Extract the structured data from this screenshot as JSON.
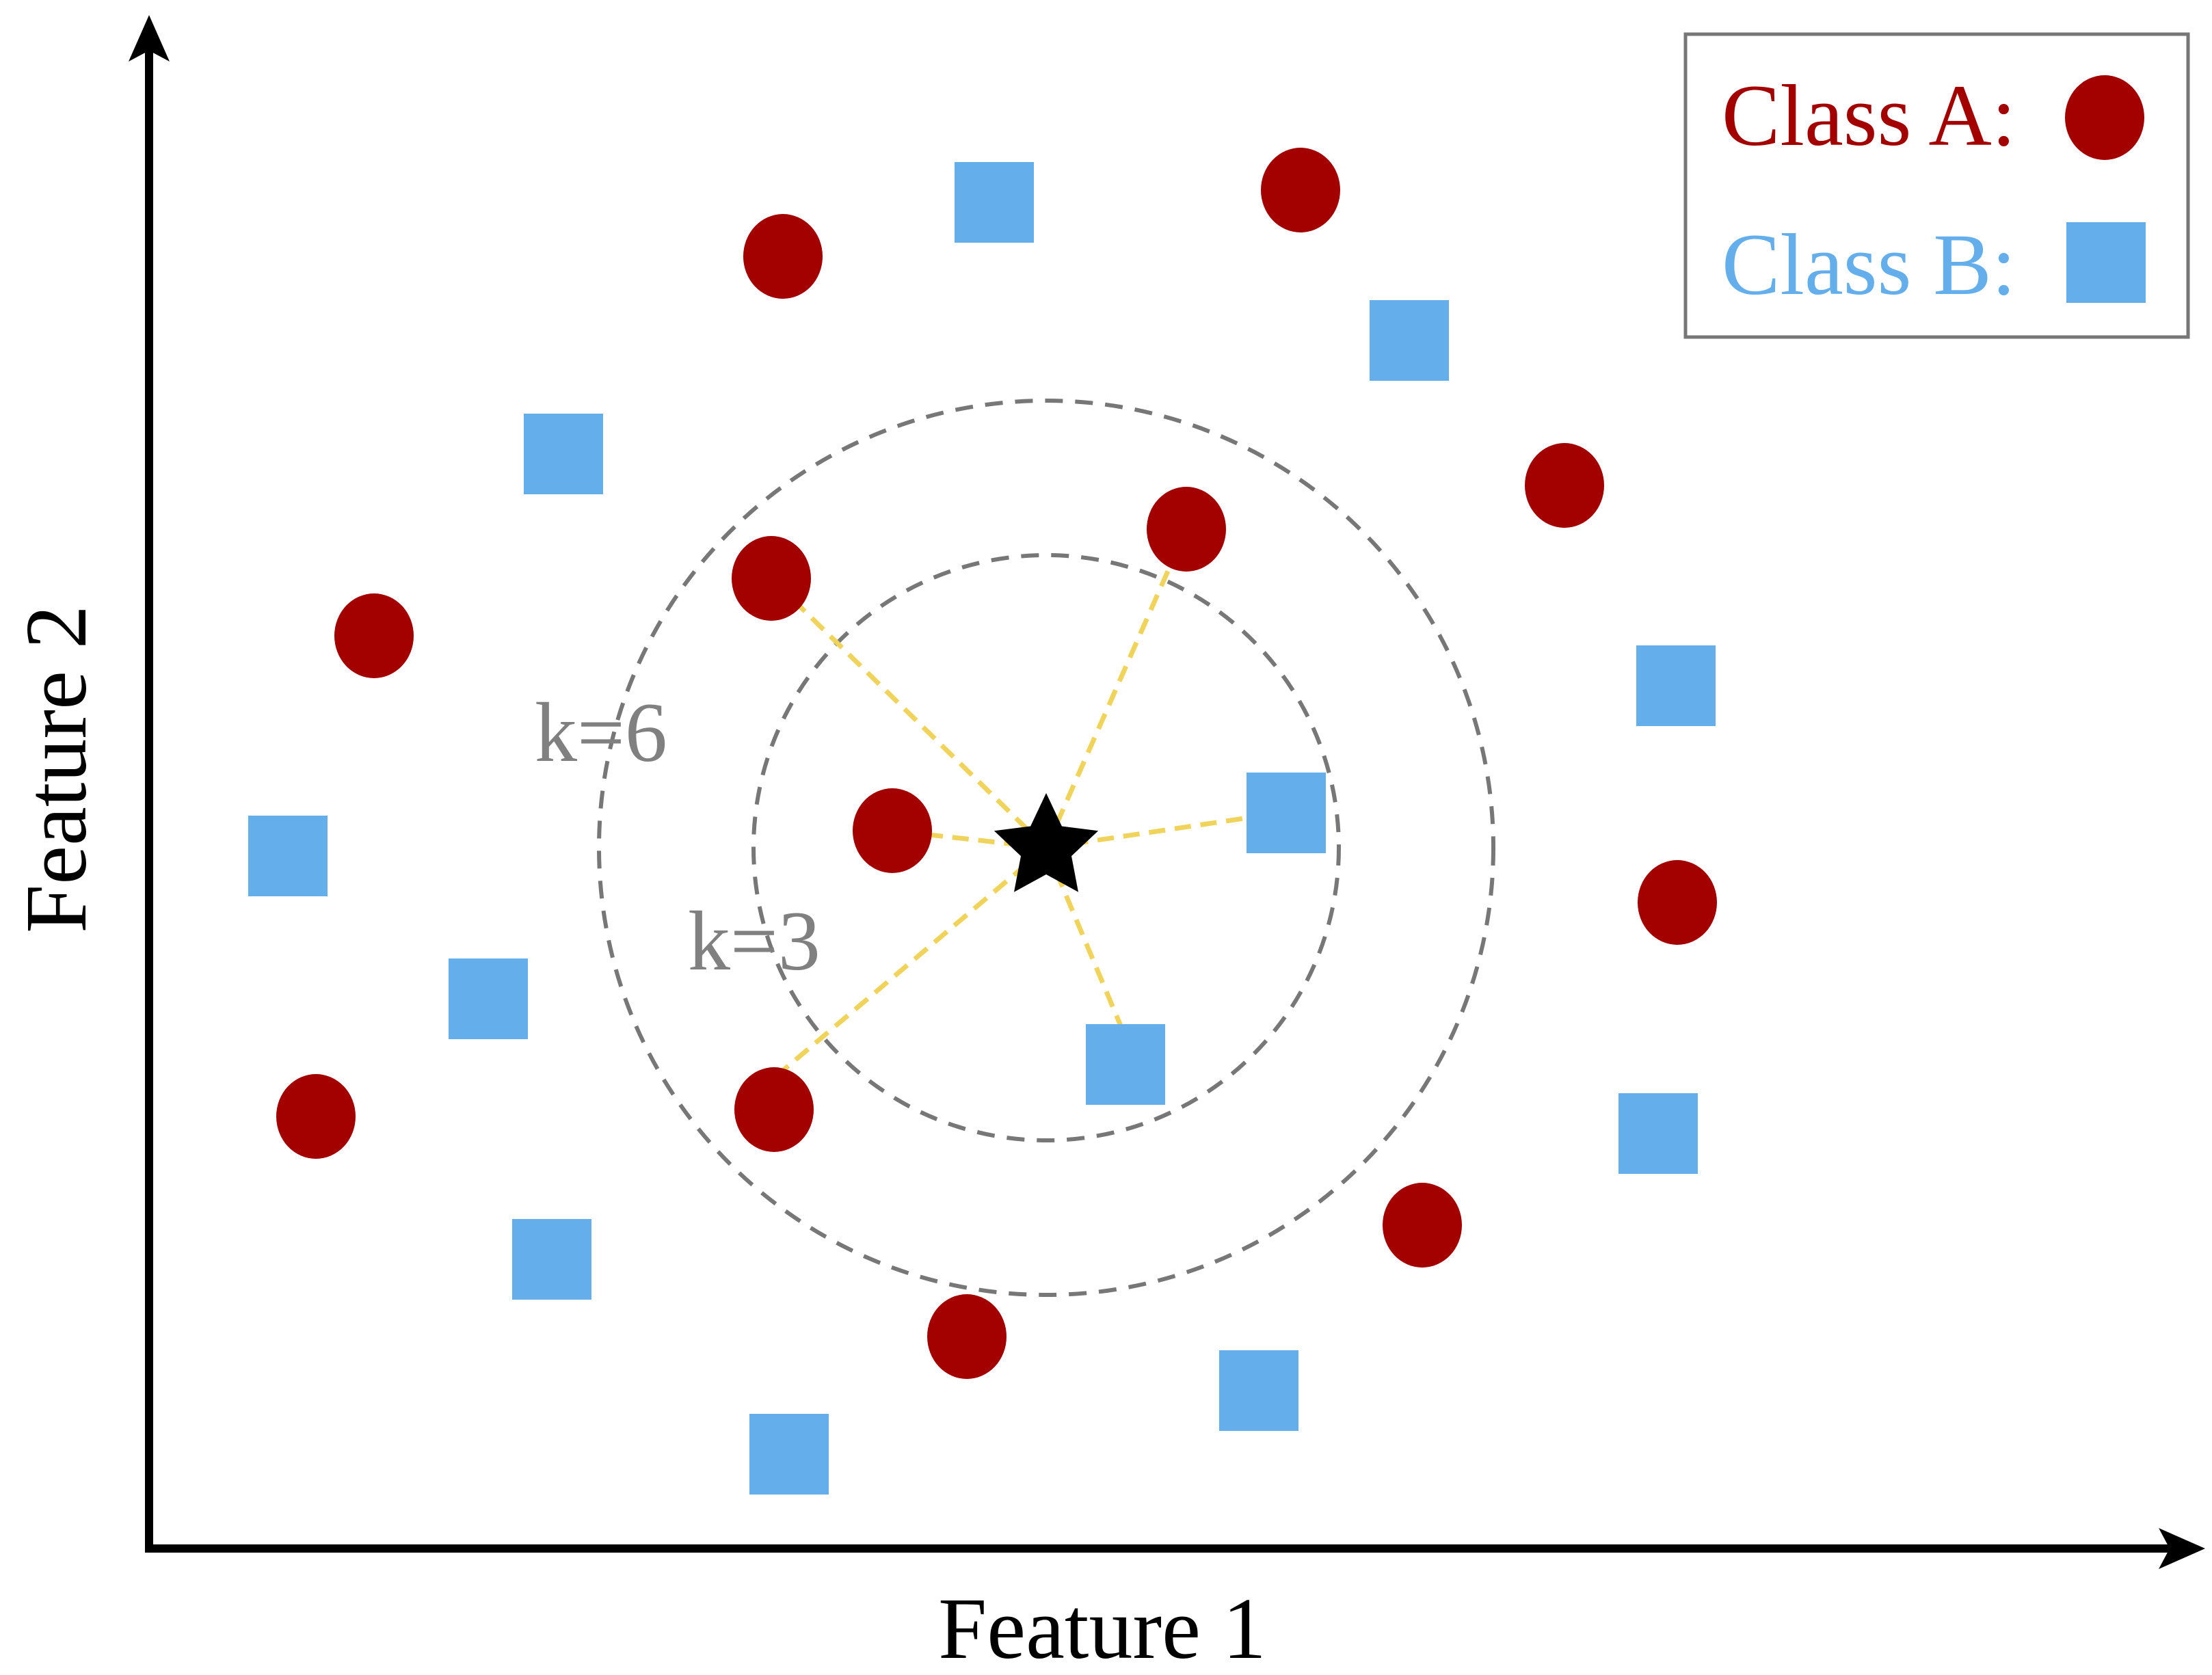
{
  "axes": {
    "x_label": "Feature 1",
    "y_label": "Feature 2"
  },
  "legend": {
    "class_a_label": "Class A:",
    "class_b_label": "Class B:"
  },
  "colors": {
    "class_a": "#A30000",
    "class_b": "#63AEEB",
    "query": "#000000",
    "k_circle": "#777777",
    "neighbor_line": "#F0D35B"
  },
  "k_labels": {
    "inner": "k=3",
    "outer": "k=6"
  }
}
